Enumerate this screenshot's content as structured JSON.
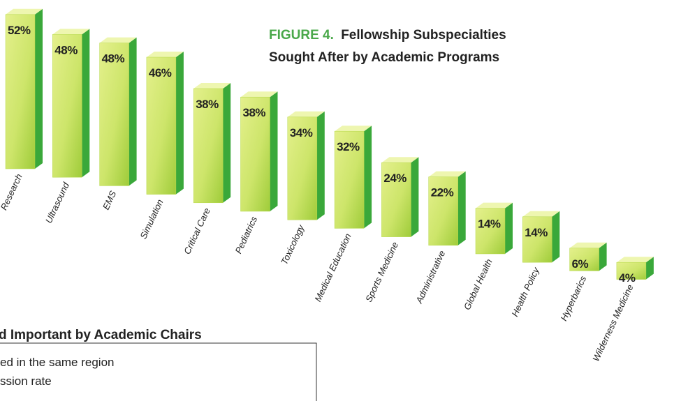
{
  "chart_data": {
    "type": "bar3d",
    "figure_label": "FIGURE 4.",
    "title_lines": [
      "Fellowship Subspecialties",
      "Sought After by Academic Programs"
    ],
    "categories": [
      "Research",
      "Ultrasound",
      "EMS",
      "Simulation",
      "Critical Care",
      "Pediatrics",
      "Toxicology",
      "Medical Education",
      "Sports Medicine",
      "Administrative",
      "Global Health",
      "Health Policy",
      "Hyperbarics",
      "Wilderness Medicine"
    ],
    "values": [
      52,
      48,
      48,
      46,
      38,
      38,
      34,
      32,
      24,
      22,
      14,
      14,
      6,
      4
    ],
    "value_labels": [
      "52%",
      "48%",
      "48%",
      "46%",
      "38%",
      "38%",
      "34%",
      "32%",
      "24%",
      "22%",
      "14%",
      "14%",
      "6%",
      "4%"
    ],
    "color": "#b6d94a",
    "side_color": "#3aa83a",
    "figure_label_color": "#4aa84a"
  },
  "other_text": {
    "heading": "d Important by Academic Chairs",
    "lines": [
      "ed in the same region",
      "ssion rate"
    ]
  }
}
